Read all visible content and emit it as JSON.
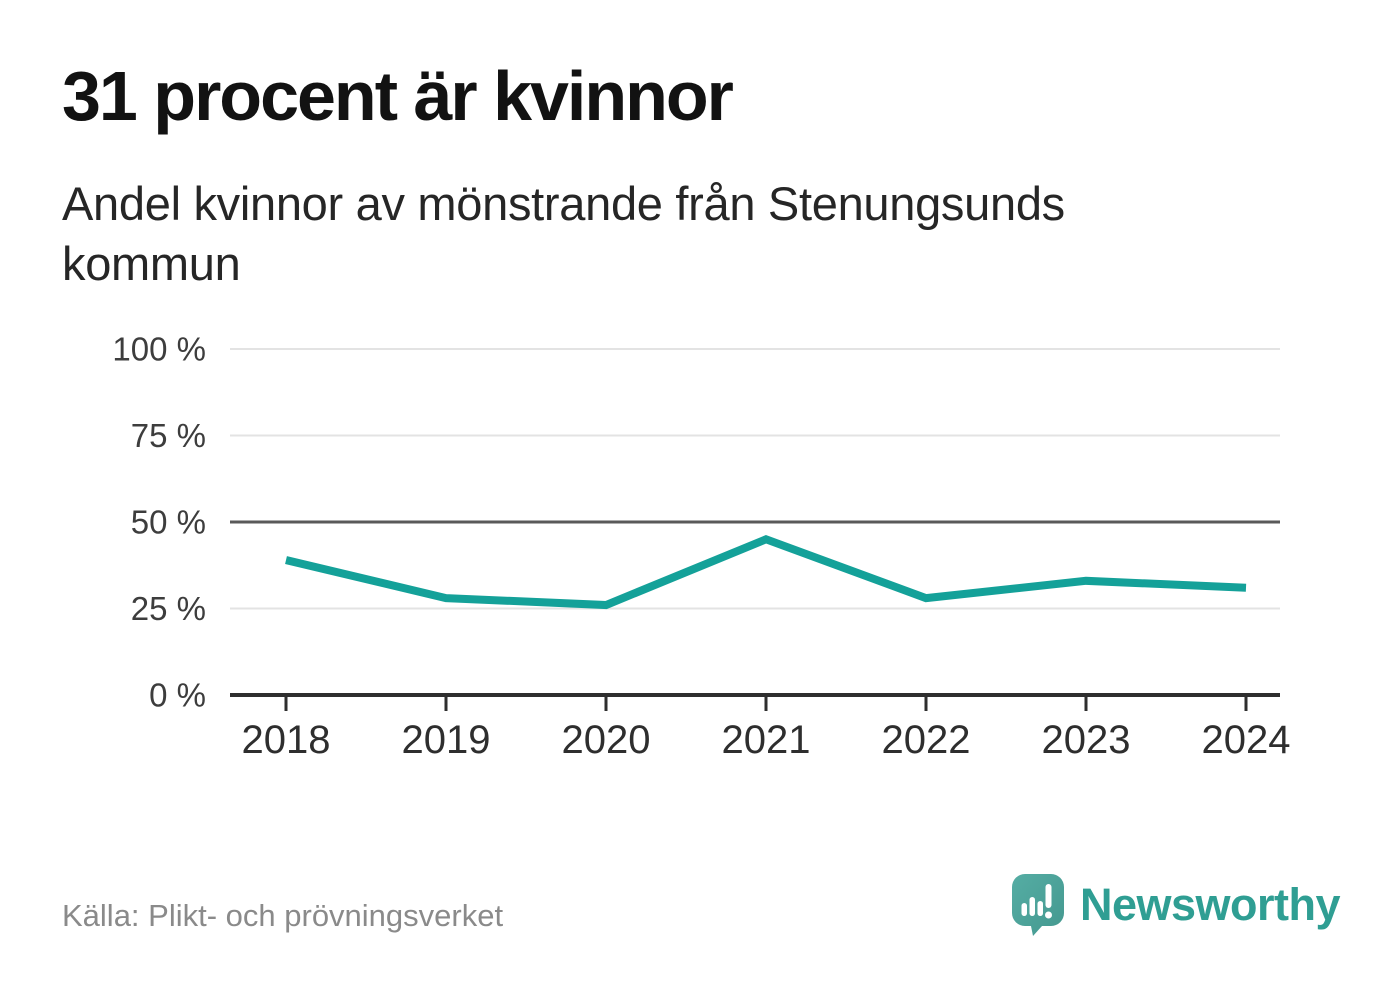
{
  "header": {
    "title": "31 procent är kvinnor",
    "subtitle": "Andel kvinnor av mönstrande från Stenungsunds kommun"
  },
  "chart_data": {
    "type": "line",
    "title": "31 procent är kvinnor",
    "subtitle": "Andel kvinnor av mönstrande från Stenungsunds kommun",
    "categories": [
      "2018",
      "2019",
      "2020",
      "2021",
      "2022",
      "2023",
      "2024"
    ],
    "series": [
      {
        "name": "Andel kvinnor av mönstrande",
        "values": [
          39,
          28,
          26,
          45,
          28,
          33,
          31
        ]
      }
    ],
    "unit": "%",
    "ylim": [
      0,
      100
    ],
    "y_ticks": [
      0,
      25,
      50,
      75,
      100
    ],
    "y_tick_suffix": " %",
    "grid": "horizontal",
    "emphasized_gridline": 50,
    "legend": "none",
    "line_color": "#14a199"
  },
  "footer": {
    "source": "Källa: Plikt- och prövningsverket",
    "brand": "Newsworthy"
  },
  "colors": {
    "accent": "#14a199",
    "axis_label": "#3d3d3d",
    "x_label": "#2e2e2e",
    "grid_light": "#e3e3e3",
    "grid_emphasis": "#5a5a5a",
    "axis_line": "#2e2e2e",
    "source_text": "#8a8a8a",
    "brand_text": "#2f9e93",
    "logo_bubble": "#4ca79f",
    "logo_bubble_dark": "#44988f",
    "logo_glyph": "#ffffff"
  }
}
